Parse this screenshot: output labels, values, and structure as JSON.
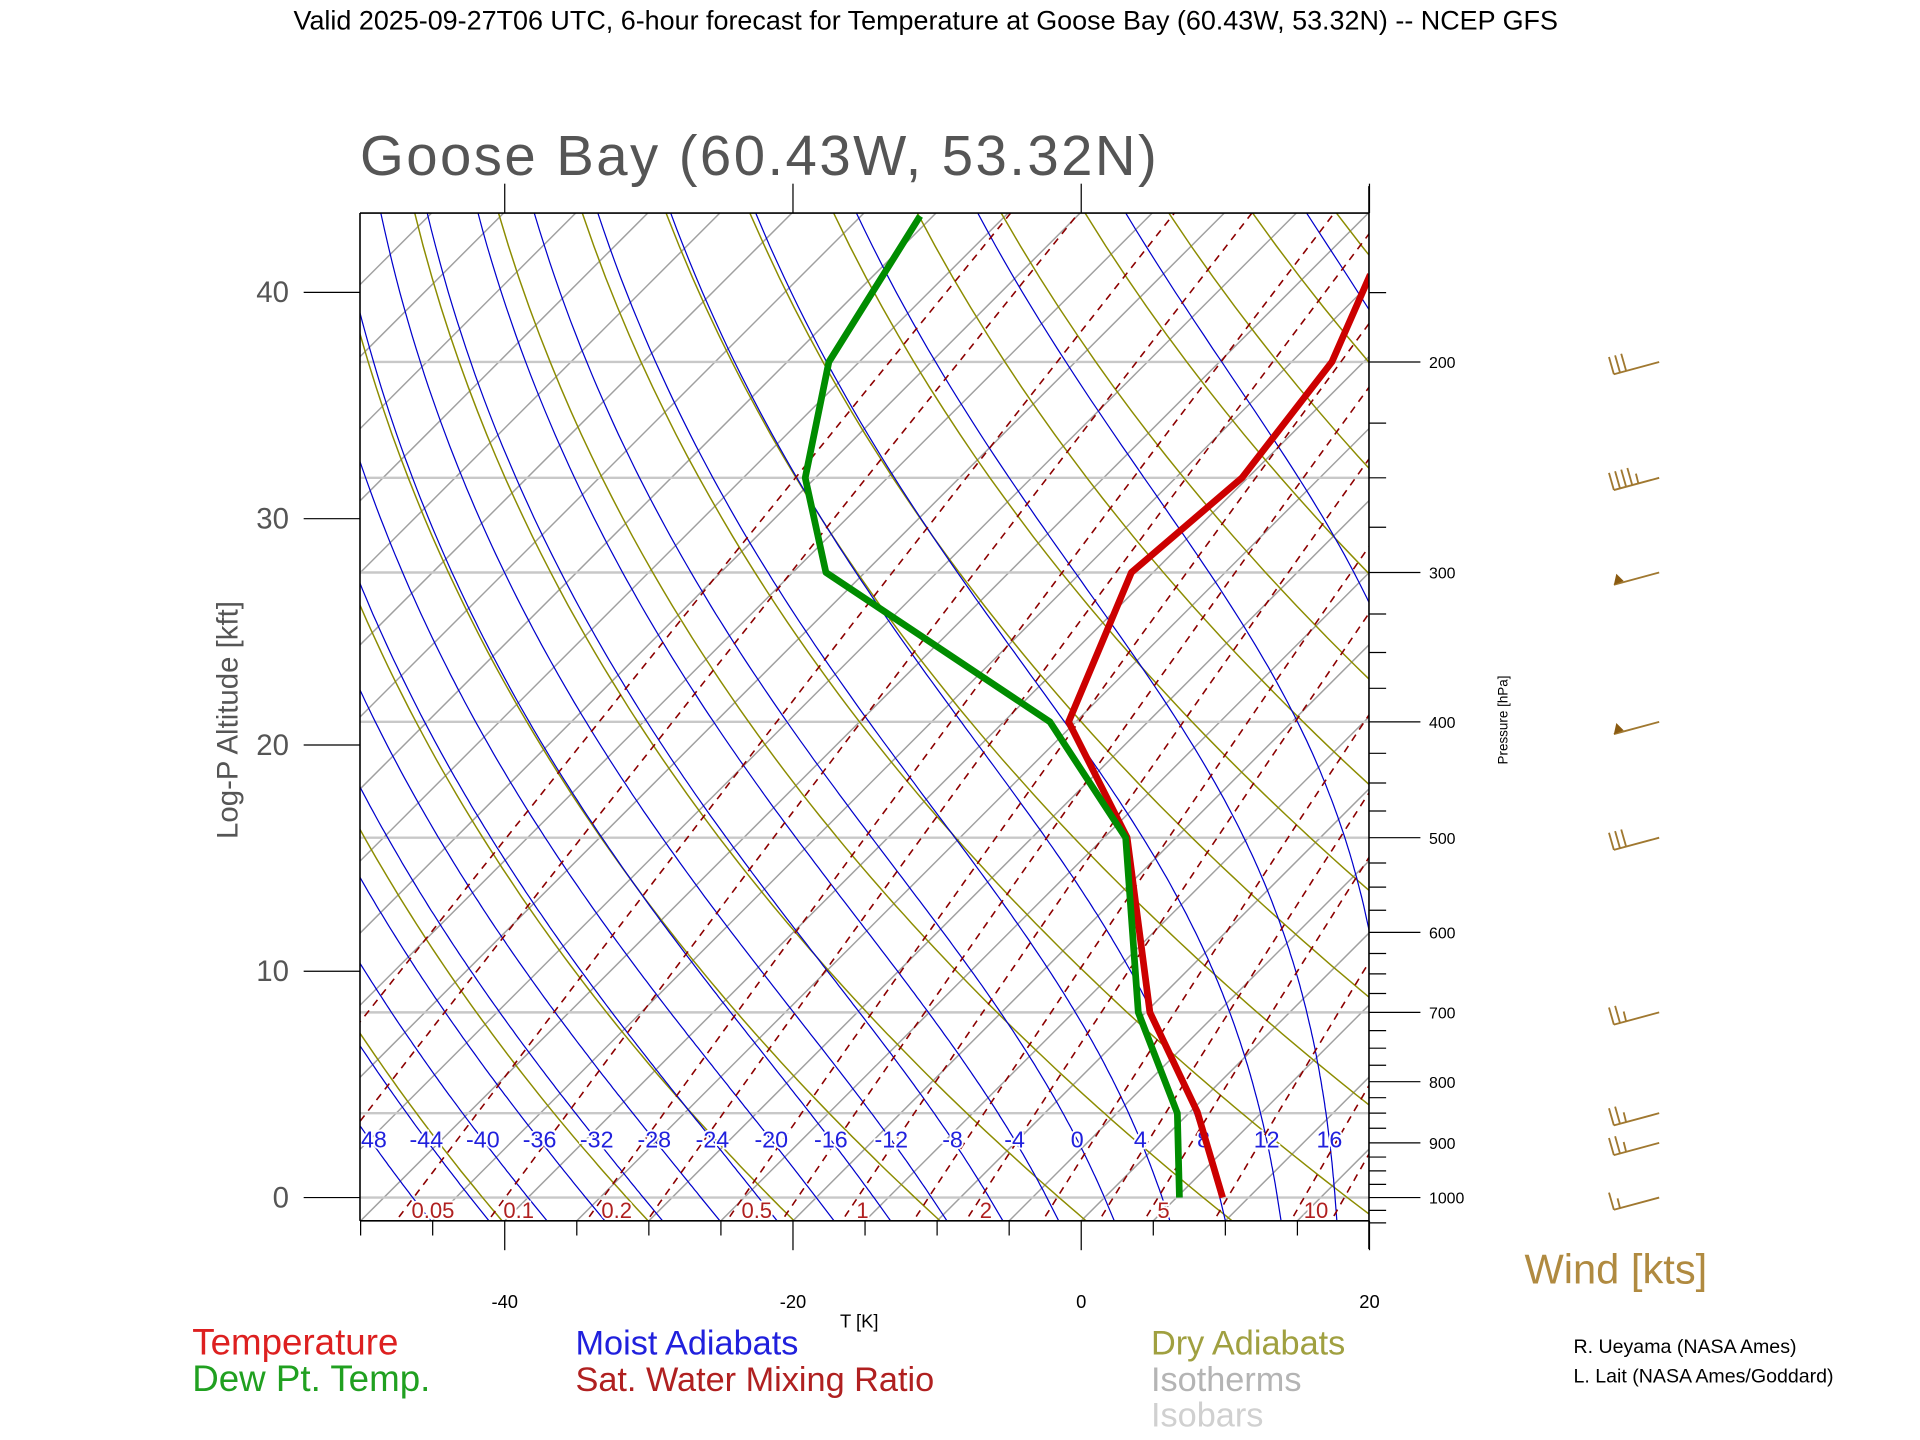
{
  "header": "Valid 2025-09-27T06 UTC, 6-hour forecast for Temperature at Goose Bay (60.43W, 53.32N) -- NCEP GFS",
  "chart_data": {
    "type": "line",
    "subtype": "skew-T log-P",
    "title": "Goose Bay (60.43W, 53.32N)",
    "xlabel": "T [K]",
    "ylabel_left": "Log-P Altitude [kft]",
    "ylabel_right": "Pressure [hPa]",
    "xlim": [
      -50,
      20
    ],
    "plim": [
      1045,
      150
    ],
    "x_ticks": [
      "-40",
      "-20",
      "0",
      "20"
    ],
    "x_tick_values": [
      -40,
      -20,
      0,
      20
    ],
    "alt_ticks": [
      "0",
      "10",
      "20",
      "30",
      "40"
    ],
    "alt_tick_values": [
      0,
      10,
      20,
      30,
      40
    ],
    "pressure_ticks": [
      "1000",
      "900",
      "800",
      "700",
      "600",
      "500",
      "400",
      "300",
      "200"
    ],
    "pressure_tick_values": [
      1000,
      900,
      800,
      700,
      600,
      500,
      400,
      300,
      200
    ],
    "isobars": [
      1000,
      850,
      700,
      500,
      400,
      300,
      250,
      200
    ],
    "series": [
      {
        "name": "Temperature",
        "color": "#cc0000",
        "p": [
          1000,
          848,
          700,
          500,
          400,
          300,
          250,
          200,
          169
        ],
        "t": [
          8.2,
          0.5,
          -9.7,
          -23.4,
          -35.5,
          -41.5,
          -40.4,
          -42.2,
          -45.6
        ]
      },
      {
        "name": "Dew Pt. Temp.",
        "color": "#008c00",
        "p": [
          1000,
          850,
          700,
          500,
          400,
          300,
          250,
          200,
          151
        ],
        "t": [
          5.2,
          -0.8,
          -10.5,
          -23.5,
          -36.8,
          -62.7,
          -70.7,
          -77.1,
          -80.9
        ]
      }
    ],
    "moist_adiabat_labels": [
      "-48",
      "-44",
      "-40",
      "-36",
      "-32",
      "-28",
      "-24",
      "-20",
      "-16",
      "-12",
      "-8",
      "-4",
      "0",
      "4",
      "8",
      "12",
      "16"
    ],
    "moist_adiabat_values": [
      -48,
      -44,
      -40,
      -36,
      -32,
      -28,
      -24,
      -20,
      -16,
      -12,
      -8,
      -4,
      0,
      4,
      8,
      12,
      16
    ],
    "mixing_ratio_labels": [
      "0.05",
      "0.1",
      "0.2",
      "0.5",
      "1",
      "2",
      "5",
      "10"
    ],
    "mixing_ratio_values": [
      0.05,
      0.1,
      0.2,
      0.5,
      1,
      2,
      5,
      10
    ],
    "wind": {
      "label": "Wind [kts]",
      "barbs": [
        {
          "p": 200,
          "speed": 30,
          "type": "barbs"
        },
        {
          "p": 250,
          "speed": 35,
          "type": "barbs"
        },
        {
          "p": 300,
          "speed": 50,
          "type": "pennant"
        },
        {
          "p": 400,
          "speed": 50,
          "type": "pennant"
        },
        {
          "p": 500,
          "speed": 30,
          "type": "barbs"
        },
        {
          "p": 700,
          "speed": 15,
          "type": "barbs"
        },
        {
          "p": 850,
          "speed": 15,
          "type": "barbs"
        },
        {
          "p": 900,
          "speed": 15,
          "type": "barbs"
        },
        {
          "p": 1000,
          "speed": 5,
          "type": "barbs"
        }
      ]
    },
    "legend": [
      {
        "label": "Temperature",
        "color": "#dd2020"
      },
      {
        "label": "Dew Pt. Temp.",
        "color": "#20a020"
      },
      {
        "label": "Moist Adiabats",
        "color": "#2020dd"
      },
      {
        "label": "Sat. Water Mixing Ratio",
        "color": "#b02020"
      },
      {
        "label": "Dry Adiabats",
        "color": "#a0a040"
      },
      {
        "label": "Isotherms",
        "color": "#b4b4b4"
      },
      {
        "label": "Isobars",
        "color": "#d0d0d0"
      }
    ]
  },
  "credits": [
    "R. Ueyama (NASA Ames)",
    "L. Lait (NASA Ames/Goddard)"
  ]
}
